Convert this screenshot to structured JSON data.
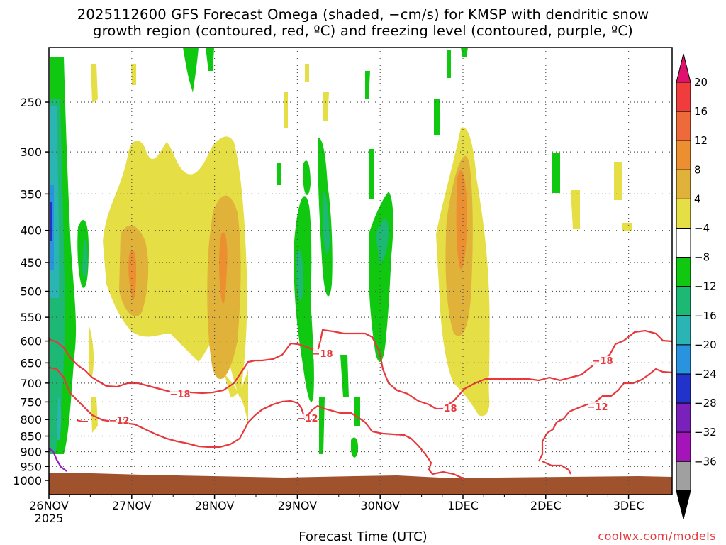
{
  "title_line1": "2025112600 GFS Forecast Omega (shaded, −cm/s) for KMSP with dendritic snow",
  "title_line2": "growth region (contoured, red, ºC) and freezing level (contoured, purple, ºC)",
  "xaxis_title": "Forecast Time (UTC)",
  "credit": "coolwx.com/models",
  "chart_data": {
    "type": "heatmap",
    "x_ticks": [
      "26NOV\n2025",
      "27NOV",
      "28NOV",
      "29NOV",
      "30NOV",
      "1DEC",
      "2DEC",
      "3DEC"
    ],
    "y_ticks": [
      250,
      300,
      350,
      400,
      450,
      500,
      550,
      600,
      650,
      700,
      750,
      800,
      850,
      900,
      950,
      1000
    ],
    "y_unit": "hPa",
    "ylim": [
      200,
      1050
    ],
    "grid": true,
    "colorbar": {
      "labels": [
        "20",
        "16",
        "12",
        "8",
        "4",
        "−4",
        "−8",
        "−12",
        "−16",
        "−20",
        "−24",
        "−28",
        "−32",
        "−36"
      ],
      "colors": [
        "#e0116e",
        "#f03c3c",
        "#ee6a3a",
        "#ec8f30",
        "#e0b23a",
        "#e5de44",
        "#ffffff",
        "#10c810",
        "#1db874",
        "#2ab4b4",
        "#2a93e0",
        "#2233cc",
        "#7a21bb",
        "#a514b8",
        "#a0a0a0",
        "#000000"
      ]
    },
    "contours": [
      {
        "label": "−18",
        "color": "#e8383d"
      },
      {
        "label": "−12",
        "color": "#e8383d"
      }
    ],
    "contour_label_text": [
      "−18",
      "−18",
      "−18",
      "−18",
      "−12",
      "−12",
      "−12"
    ],
    "freezing_level_color": "#9a1cc0",
    "ground_color": "#a0522d"
  }
}
